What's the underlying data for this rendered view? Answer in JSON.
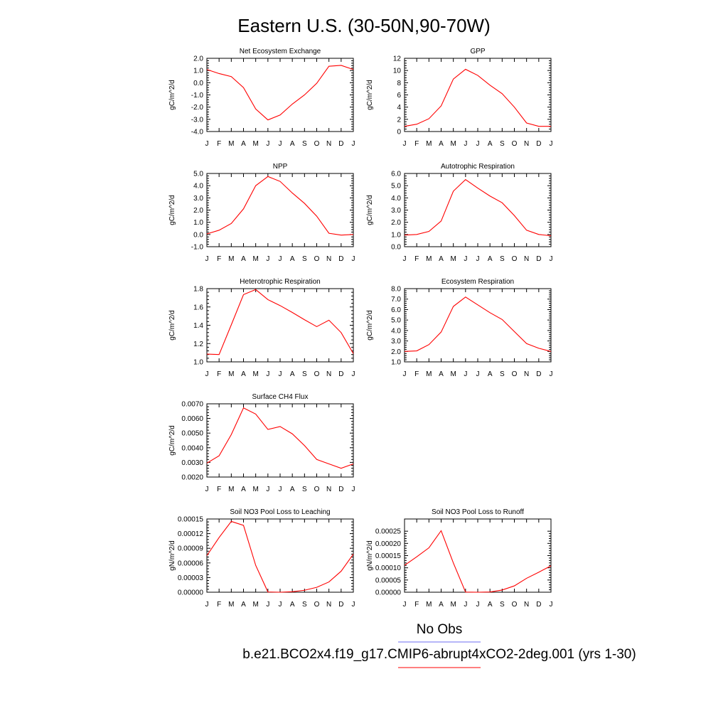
{
  "title": "Eastern U.S. (30-50N,90-70W)",
  "legend": {
    "obs_label": "No Obs",
    "obs_color": "#6e6ef0",
    "model_label": "b.e21.BCO2x4.f19_g17.CMIP6-abrupt4xCO2-2deg.001 (yrs 1-30)",
    "model_color": "#ff0000"
  },
  "chart_data": [
    {
      "type": "line",
      "title": "Net Ecosystem Exchange",
      "ylabel": "gC/m^2/d",
      "ylim": [
        -4.0,
        2.0
      ],
      "yticks": [
        2.0,
        1.0,
        0.0,
        -1.0,
        -2.0,
        -3.0,
        -4.0
      ],
      "ytick_labels": [
        "2.0",
        "1.0",
        "0.0",
        "-1.0",
        "-2.0",
        "-3.0",
        "-4.0"
      ],
      "x": [
        "J",
        "F",
        "M",
        "A",
        "M",
        "J",
        "J",
        "A",
        "S",
        "O",
        "N",
        "D",
        "J"
      ],
      "series": [
        {
          "color": "#ff0000",
          "values": [
            1.08,
            0.75,
            0.5,
            -0.4,
            -2.15,
            -3.05,
            -2.65,
            -1.75,
            -1.0,
            -0.05,
            1.35,
            1.42,
            1.08
          ]
        }
      ]
    },
    {
      "type": "line",
      "title": "GPP",
      "ylabel": "gC/m^2/d",
      "ylim": [
        0,
        12
      ],
      "yticks": [
        12,
        10,
        8,
        6,
        4,
        2,
        0
      ],
      "ytick_labels": [
        "12",
        "10",
        "8",
        "6",
        "4",
        "2",
        "0"
      ],
      "x": [
        "J",
        "F",
        "M",
        "A",
        "M",
        "J",
        "J",
        "A",
        "S",
        "O",
        "N",
        "D",
        "J"
      ],
      "series": [
        {
          "color": "#ff0000",
          "values": [
            0.85,
            1.2,
            2.1,
            4.2,
            8.6,
            10.2,
            9.2,
            7.6,
            6.2,
            4.0,
            1.4,
            0.85,
            0.85
          ]
        }
      ]
    },
    {
      "type": "line",
      "title": "NPP",
      "ylabel": "gC/m^2/d",
      "ylim": [
        -1.0,
        5.0
      ],
      "yticks": [
        5.0,
        4.0,
        3.0,
        2.0,
        1.0,
        0.0,
        -1.0
      ],
      "ytick_labels": [
        "5.0",
        "4.0",
        "3.0",
        "2.0",
        "1.0",
        "0.0",
        "-1.0"
      ],
      "x": [
        "J",
        "F",
        "M",
        "A",
        "M",
        "J",
        "J",
        "A",
        "S",
        "O",
        "N",
        "D",
        "J"
      ],
      "series": [
        {
          "color": "#ff0000",
          "values": [
            0.05,
            0.35,
            0.9,
            2.1,
            4.0,
            4.75,
            4.35,
            3.4,
            2.55,
            1.5,
            0.1,
            -0.05,
            0.0
          ]
        }
      ]
    },
    {
      "type": "line",
      "title": "Autotrophic Respiration",
      "ylabel": "gC/m^2/d",
      "ylim": [
        0.0,
        6.0
      ],
      "yticks": [
        6.0,
        5.0,
        4.0,
        3.0,
        2.0,
        1.0,
        0.0
      ],
      "ytick_labels": [
        "6.0",
        "5.0",
        "4.0",
        "3.0",
        "2.0",
        "1.0",
        "0.0"
      ],
      "x": [
        "J",
        "F",
        "M",
        "A",
        "M",
        "J",
        "J",
        "A",
        "S",
        "O",
        "N",
        "D",
        "J"
      ],
      "series": [
        {
          "color": "#ff0000",
          "values": [
            0.95,
            1.0,
            1.25,
            2.1,
            4.55,
            5.5,
            4.8,
            4.15,
            3.6,
            2.55,
            1.35,
            1.0,
            0.9
          ]
        }
      ]
    },
    {
      "type": "line",
      "title": "Heterotrophic Respiration",
      "ylabel": "gC/m^2/d",
      "ylim": [
        1.0,
        1.8
      ],
      "yticks": [
        1.8,
        1.6,
        1.4,
        1.2,
        1.0
      ],
      "ytick_labels": [
        "1.8",
        "1.6",
        "1.4",
        "1.2",
        "1.0"
      ],
      "x": [
        "J",
        "F",
        "M",
        "A",
        "M",
        "J",
        "J",
        "A",
        "S",
        "O",
        "N",
        "D",
        "J"
      ],
      "series": [
        {
          "color": "#ff0000",
          "values": [
            1.085,
            1.08,
            1.405,
            1.735,
            1.79,
            1.68,
            1.615,
            1.54,
            1.46,
            1.385,
            1.455,
            1.32,
            1.09
          ]
        }
      ]
    },
    {
      "type": "line",
      "title": "Ecosystem Respiration",
      "ylabel": "gC/m^2/d",
      "ylim": [
        1.0,
        8.0
      ],
      "yticks": [
        8.0,
        7.0,
        6.0,
        5.0,
        4.0,
        3.0,
        2.0,
        1.0
      ],
      "ytick_labels": [
        "8.0",
        "7.0",
        "6.0",
        "5.0",
        "4.0",
        "3.0",
        "2.0",
        "1.0"
      ],
      "x": [
        "J",
        "F",
        "M",
        "A",
        "M",
        "J",
        "J",
        "A",
        "S",
        "O",
        "N",
        "D",
        "J"
      ],
      "series": [
        {
          "color": "#ff0000",
          "values": [
            2.0,
            2.05,
            2.65,
            3.85,
            6.3,
            7.2,
            6.45,
            5.7,
            5.05,
            3.9,
            2.75,
            2.3,
            2.0
          ]
        }
      ]
    },
    {
      "type": "line",
      "title": "Surface CH4 Flux",
      "ylabel": "gC/m^2/d",
      "ylim": [
        0.002,
        0.007
      ],
      "yticks": [
        0.007,
        0.006,
        0.005,
        0.004,
        0.003,
        0.002
      ],
      "ytick_labels": [
        "0.0070",
        "0.0060",
        "0.0050",
        "0.0040",
        "0.0030",
        "0.0020"
      ],
      "x": [
        "J",
        "F",
        "M",
        "A",
        "M",
        "J",
        "J",
        "A",
        "S",
        "O",
        "N",
        "D",
        "J"
      ],
      "series": [
        {
          "color": "#ff0000",
          "values": [
            0.00295,
            0.00345,
            0.0049,
            0.00672,
            0.0063,
            0.00525,
            0.00545,
            0.00495,
            0.00415,
            0.0032,
            0.0029,
            0.0026,
            0.0029
          ]
        }
      ]
    },
    {
      "type": "line",
      "title": "Soil NO3 Pool Loss to Leaching",
      "ylabel": "gN/m^2/d",
      "ylim": [
        0,
        0.00015
      ],
      "yticks": [
        0.00015,
        0.00012,
        9e-05,
        6e-05,
        3e-05,
        0.0
      ],
      "ytick_labels": [
        "0.00015",
        "0.00012",
        "0.00009",
        "0.00006",
        "0.00003",
        "0.00000"
      ],
      "x": [
        "J",
        "F",
        "M",
        "A",
        "M",
        "J",
        "J",
        "A",
        "S",
        "O",
        "N",
        "D",
        "J"
      ],
      "series": [
        {
          "color": "#ff0000",
          "values": [
            7.5e-05,
            0.000112,
            0.000145,
            0.000137,
            5.5e-05,
            5e-07,
            0.0,
            1e-06,
            4e-06,
            1e-05,
            2.1e-05,
            4.3e-05,
            7.8e-05
          ]
        }
      ]
    },
    {
      "type": "line",
      "title": "Soil NO3 Pool Loss to Runoff",
      "ylabel": "gN/m^2/d",
      "ylim": [
        0,
        0.0003
      ],
      "yticks": [
        0.00025,
        0.0002,
        0.00015,
        0.0001,
        5e-05,
        0.0
      ],
      "ytick_labels": [
        "0.00025",
        "0.00020",
        "0.00015",
        "0.00010",
        "0.00005",
        "0.00000"
      ],
      "x": [
        "J",
        "F",
        "M",
        "A",
        "M",
        "J",
        "J",
        "A",
        "S",
        "O",
        "N",
        "D",
        "J"
      ],
      "series": [
        {
          "color": "#ff0000",
          "values": [
            0.00011,
            0.000145,
            0.000182,
            0.000252,
            0.00012,
            5e-07,
            0.0,
            1e-06,
            9e-06,
            2.6e-05,
            5.7e-05,
            8.2e-05,
            0.000108
          ]
        }
      ]
    }
  ]
}
